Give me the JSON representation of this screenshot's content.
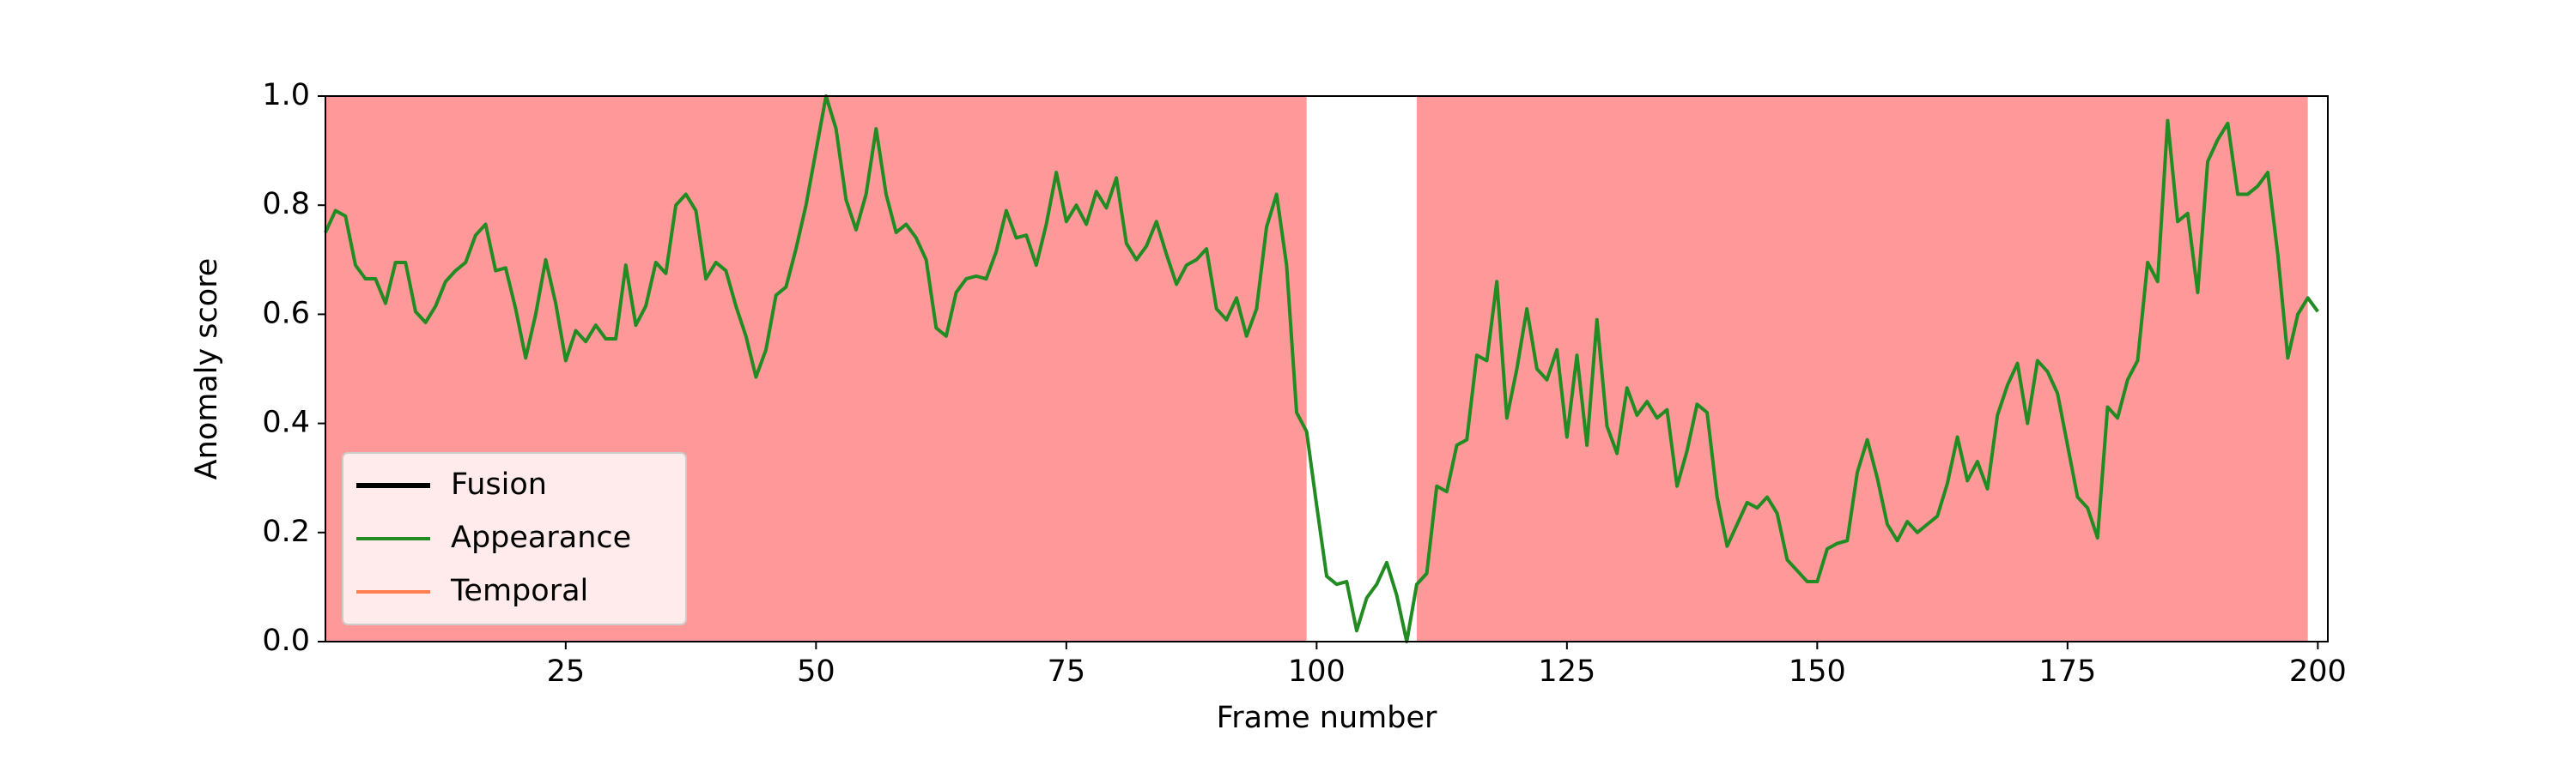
{
  "chart_data": {
    "type": "line",
    "xlabel": "Frame number",
    "ylabel": "Anomaly score",
    "x": [
      1,
      2,
      3,
      4,
      5,
      6,
      7,
      8,
      9,
      10,
      11,
      12,
      13,
      14,
      15,
      16,
      17,
      18,
      19,
      20,
      21,
      22,
      23,
      24,
      25,
      26,
      27,
      28,
      29,
      30,
      31,
      32,
      33,
      34,
      35,
      36,
      37,
      38,
      39,
      40,
      41,
      42,
      43,
      44,
      45,
      46,
      47,
      48,
      49,
      50,
      51,
      52,
      53,
      54,
      55,
      56,
      57,
      58,
      59,
      60,
      61,
      62,
      63,
      64,
      65,
      66,
      67,
      68,
      69,
      70,
      71,
      72,
      73,
      74,
      75,
      76,
      77,
      78,
      79,
      80,
      81,
      82,
      83,
      84,
      85,
      86,
      87,
      88,
      89,
      90,
      91,
      92,
      93,
      94,
      95,
      96,
      97,
      98,
      99,
      100,
      101,
      102,
      103,
      104,
      105,
      106,
      107,
      108,
      109,
      110,
      111,
      112,
      113,
      114,
      115,
      116,
      117,
      118,
      119,
      120,
      121,
      122,
      123,
      124,
      125,
      126,
      127,
      128,
      129,
      130,
      131,
      132,
      133,
      134,
      135,
      136,
      137,
      138,
      139,
      140,
      141,
      142,
      143,
      144,
      145,
      146,
      147,
      148,
      149,
      150,
      151,
      152,
      153,
      154,
      155,
      156,
      157,
      158,
      159,
      160,
      161,
      162,
      163,
      164,
      165,
      166,
      167,
      168,
      169,
      170,
      171,
      172,
      173,
      174,
      175,
      176,
      177,
      178,
      179,
      180,
      181,
      182,
      183,
      184,
      185,
      186,
      187,
      188,
      189,
      190,
      191,
      192,
      193,
      194,
      195,
      196,
      197,
      198,
      199,
      200
    ],
    "series": [
      {
        "name": "Appearance",
        "color": "#228b22",
        "values": [
          0.75,
          0.79,
          0.78,
          0.69,
          0.665,
          0.665,
          0.62,
          0.695,
          0.695,
          0.605,
          0.585,
          0.615,
          0.66,
          0.68,
          0.695,
          0.745,
          0.765,
          0.68,
          0.685,
          0.61,
          0.52,
          0.6,
          0.7,
          0.62,
          0.515,
          0.57,
          0.55,
          0.58,
          0.555,
          0.555,
          0.69,
          0.58,
          0.615,
          0.695,
          0.675,
          0.8,
          0.82,
          0.79,
          0.665,
          0.695,
          0.68,
          0.615,
          0.56,
          0.485,
          0.535,
          0.635,
          0.65,
          0.72,
          0.8,
          0.9,
          1.0,
          0.94,
          0.81,
          0.755,
          0.82,
          0.94,
          0.82,
          0.75,
          0.765,
          0.74,
          0.7,
          0.575,
          0.56,
          0.64,
          0.665,
          0.67,
          0.665,
          0.715,
          0.79,
          0.74,
          0.745,
          0.69,
          0.765,
          0.86,
          0.77,
          0.8,
          0.765,
          0.825,
          0.795,
          0.85,
          0.73,
          0.7,
          0.725,
          0.77,
          0.71,
          0.655,
          0.69,
          0.7,
          0.72,
          0.61,
          0.59,
          0.63,
          0.56,
          0.61,
          0.76,
          0.82,
          0.69,
          0.42,
          0.385,
          0.25,
          0.12,
          0.105,
          0.11,
          0.02,
          0.08,
          0.105,
          0.145,
          0.085,
          0.0,
          0.105,
          0.125,
          0.285,
          0.275,
          0.36,
          0.37,
          0.525,
          0.515,
          0.66,
          0.41,
          0.5,
          0.61,
          0.5,
          0.48,
          0.535,
          0.375,
          0.525,
          0.36,
          0.59,
          0.395,
          0.345,
          0.465,
          0.415,
          0.44,
          0.41,
          0.425,
          0.285,
          0.35,
          0.435,
          0.42,
          0.265,
          0.175,
          0.215,
          0.255,
          0.245,
          0.265,
          0.235,
          0.15,
          0.13,
          0.11,
          0.11,
          0.17,
          0.18,
          0.185,
          0.31,
          0.37,
          0.3,
          0.215,
          0.185,
          0.22,
          0.2,
          0.215,
          0.23,
          0.29,
          0.375,
          0.295,
          0.33,
          0.28,
          0.415,
          0.47,
          0.51,
          0.4,
          0.515,
          0.495,
          0.455,
          0.36,
          0.265,
          0.245,
          0.19,
          0.43,
          0.41,
          0.48,
          0.515,
          0.695,
          0.66,
          0.955,
          0.77,
          0.785,
          0.64,
          0.88,
          0.92,
          0.95,
          0.82,
          0.82,
          0.835,
          0.86,
          0.71,
          0.52,
          0.6,
          0.63,
          0.605
        ]
      }
    ],
    "shaded_regions": [
      {
        "start": 1,
        "end": 99
      },
      {
        "start": 110,
        "end": 199
      }
    ],
    "shade_color": "#ff9999",
    "legend": {
      "loc": "lower left",
      "entries": [
        {
          "name": "Fusion",
          "color": "#000000",
          "linewidth": 3
        },
        {
          "name": "Appearance",
          "color": "#228b22",
          "linewidth": 2
        },
        {
          "name": "Temporal",
          "color": "#ff7f50",
          "linewidth": 2
        }
      ]
    },
    "xlim": [
      1,
      201
    ],
    "ylim": [
      0,
      1
    ],
    "xticks": [
      25,
      50,
      75,
      100,
      125,
      150,
      175,
      200
    ],
    "yticks": [
      {
        "value": 0,
        "label": "0.0"
      },
      0.2,
      0.4,
      0.6,
      0.8,
      {
        "value": 1,
        "label": "1.0"
      }
    ]
  }
}
